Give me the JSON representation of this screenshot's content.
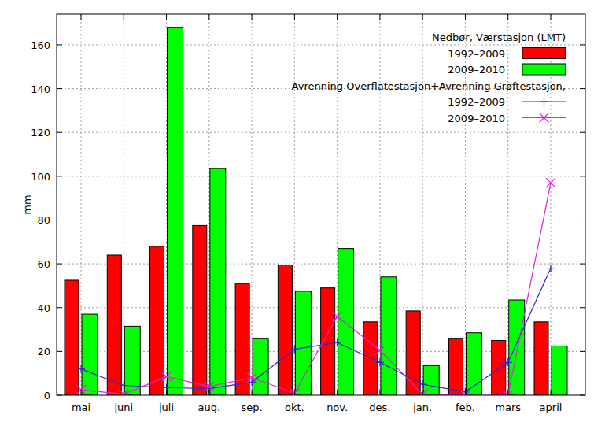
{
  "chart_data": {
    "type": "bar",
    "y_label": "mm",
    "categories": [
      "mai",
      "juni",
      "juli",
      "aug.",
      "sep.",
      "okt.",
      "nov.",
      "des.",
      "jan.",
      "feb.",
      "mars",
      "april"
    ],
    "ylim": [
      0,
      174
    ],
    "yticks": [
      0,
      20,
      40,
      60,
      80,
      100,
      120,
      140,
      160
    ],
    "grid": true,
    "legend": "top-right",
    "series": [
      {
        "name": "1992–2009",
        "group": "Nedbør, Værstasjon (LMT)",
        "type": "bar",
        "color": "#ff0000",
        "values": [
          52.5,
          64,
          68,
          77.5,
          51,
          59.5,
          49,
          33.5,
          38.5,
          26,
          25,
          33.5
        ]
      },
      {
        "name": "2009–2010",
        "group": "Nedbør, Værstasjon (LMT)",
        "type": "bar",
        "color": "#00ff00",
        "values": [
          37,
          31.5,
          168,
          103.5,
          26,
          47.5,
          67,
          54,
          13.5,
          28.5,
          43.5,
          22.5
        ]
      },
      {
        "name": "1992–2009",
        "group": "Avrenning Overflatestasjon+Avrenning Grøftestasjon,",
        "type": "line",
        "color": "#2a2acc",
        "marker": "plus",
        "values": [
          12,
          4.5,
          3.5,
          3,
          6,
          21,
          24,
          15,
          5,
          1.5,
          15,
          58
        ]
      },
      {
        "name": "2009–2010",
        "group": "Avrenning Overflatestasjon+Avrenning Grøftestasjon,",
        "type": "line",
        "color": "#e020e0",
        "marker": "cross",
        "values": [
          2.5,
          0.5,
          8.5,
          4,
          8,
          1,
          36,
          20.5,
          0.5,
          0,
          0,
          97
        ]
      }
    ]
  }
}
